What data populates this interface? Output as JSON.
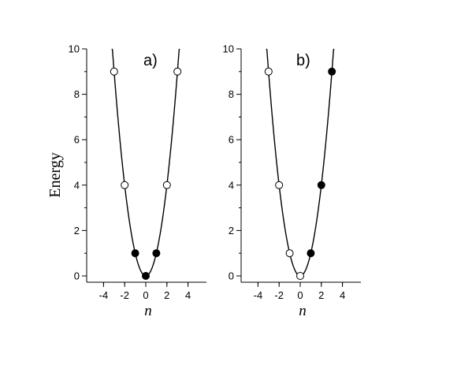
{
  "chart_data": [
    {
      "type": "scatter",
      "panel_label": "a)",
      "xlabel": "n",
      "ylabel": "Energy",
      "xlim": [
        -5,
        5
      ],
      "ylim": [
        0,
        10
      ],
      "xticks": [
        -4,
        -2,
        0,
        2,
        4
      ],
      "yticks": [
        0,
        2,
        4,
        6,
        8,
        10
      ],
      "curve": "parabola",
      "grid": false,
      "series": [
        {
          "marker": "open",
          "x": [
            -3,
            -2,
            2,
            3
          ],
          "y": [
            9,
            4,
            4,
            9
          ]
        },
        {
          "marker": "filled",
          "x": [
            -1,
            0,
            1
          ],
          "y": [
            1,
            0,
            1
          ]
        }
      ]
    },
    {
      "type": "scatter",
      "panel_label": "b)",
      "xlabel": "n",
      "ylabel": "",
      "xlim": [
        -5,
        5
      ],
      "ylim": [
        0,
        10
      ],
      "xticks": [
        -4,
        -2,
        0,
        2,
        4
      ],
      "yticks": [
        0,
        2,
        4,
        6,
        8,
        10
      ],
      "curve": "parabola",
      "grid": false,
      "series": [
        {
          "marker": "open",
          "x": [
            -3,
            -2,
            -1,
            0
          ],
          "y": [
            9,
            4,
            1,
            0
          ]
        },
        {
          "marker": "filled",
          "x": [
            1,
            2,
            3
          ],
          "y": [
            1,
            4,
            9
          ]
        }
      ]
    }
  ]
}
